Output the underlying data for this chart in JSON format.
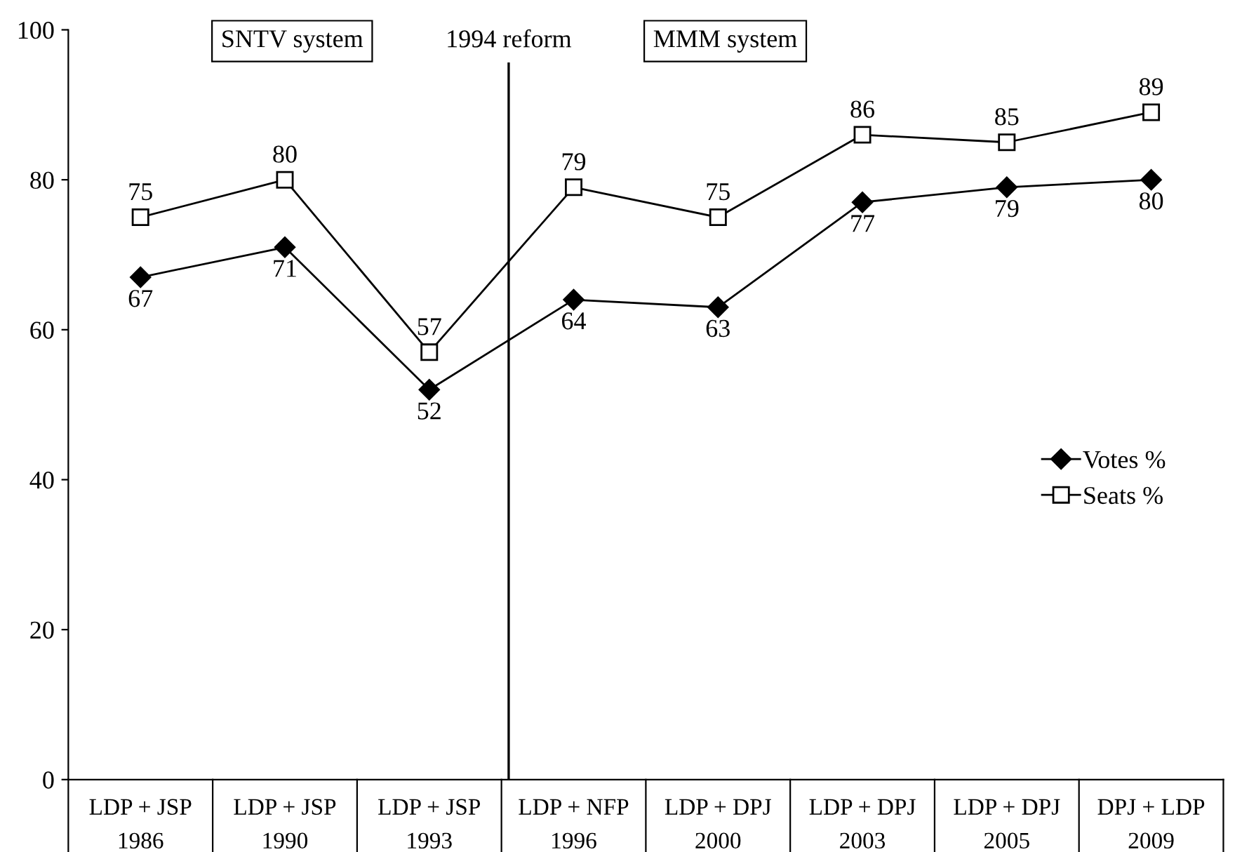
{
  "chart_data": {
    "type": "line",
    "categories": [
      "LDP + JSP\n1986",
      "LDP + JSP\n1990",
      "LDP + JSP\n1993",
      "LDP + NFP\n1996",
      "LDP + DPJ\n2000",
      "LDP + DPJ\n2003",
      "LDP + DPJ\n2005",
      "DPJ + LDP\n2009"
    ],
    "series": [
      {
        "name": "Votes %",
        "color": "#000000",
        "marker": "diamond",
        "values": [
          67,
          71,
          52,
          64,
          63,
          77,
          79,
          80
        ]
      },
      {
        "name": "Seats %",
        "color": "#000000",
        "marker": "square",
        "values": [
          75,
          80,
          57,
          79,
          75,
          86,
          85,
          89
        ]
      }
    ],
    "ylim": [
      0,
      100
    ],
    "yticks": [
      0,
      20,
      40,
      60,
      80,
      100
    ],
    "annotations": [
      "SNTV system",
      "1994 reform",
      "MMM system"
    ],
    "data_labels": true,
    "legend": "right",
    "grid": false,
    "line_style": "solid"
  }
}
